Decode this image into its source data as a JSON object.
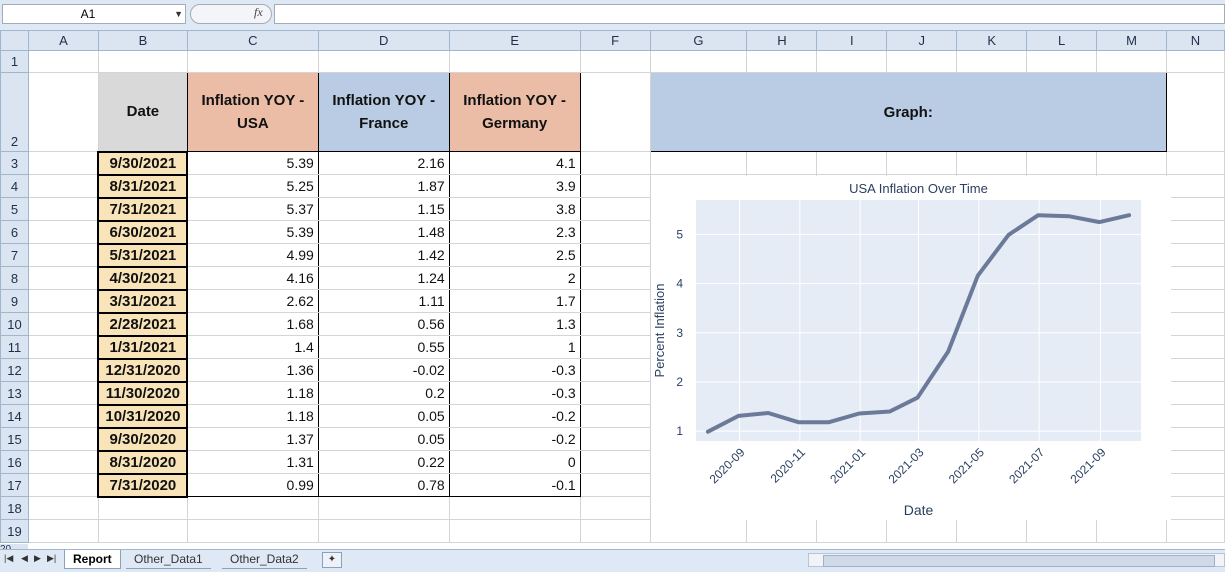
{
  "formula_bar": {
    "name_box": "A1",
    "fx": "fx",
    "formula": ""
  },
  "columns": [
    "A",
    "B",
    "C",
    "D",
    "E",
    "F",
    "G",
    "H",
    "I",
    "J",
    "K",
    "L",
    "M",
    "N"
  ],
  "rows": [
    "1",
    "2",
    "3",
    "4",
    "5",
    "6",
    "7",
    "8",
    "9",
    "10",
    "11",
    "12",
    "13",
    "14",
    "15",
    "16",
    "17",
    "18",
    "19"
  ],
  "table": {
    "headers": {
      "date": "Date",
      "usa": "Inflation YOY - USA",
      "france": "Inflation YOY - France",
      "germany": "Inflation YOY - Germany"
    },
    "data": [
      {
        "date": "9/30/2021",
        "usa": "5.39",
        "france": "2.16",
        "germany": "4.1"
      },
      {
        "date": "8/31/2021",
        "usa": "5.25",
        "france": "1.87",
        "germany": "3.9"
      },
      {
        "date": "7/31/2021",
        "usa": "5.37",
        "france": "1.15",
        "germany": "3.8"
      },
      {
        "date": "6/30/2021",
        "usa": "5.39",
        "france": "1.48",
        "germany": "2.3"
      },
      {
        "date": "5/31/2021",
        "usa": "4.99",
        "france": "1.42",
        "germany": "2.5"
      },
      {
        "date": "4/30/2021",
        "usa": "4.16",
        "france": "1.24",
        "germany": "2"
      },
      {
        "date": "3/31/2021",
        "usa": "2.62",
        "france": "1.11",
        "germany": "1.7"
      },
      {
        "date": "2/28/2021",
        "usa": "1.68",
        "france": "0.56",
        "germany": "1.3"
      },
      {
        "date": "1/31/2021",
        "usa": "1.4",
        "france": "0.55",
        "germany": "1"
      },
      {
        "date": "12/31/2020",
        "usa": "1.36",
        "france": "-0.02",
        "germany": "-0.3"
      },
      {
        "date": "11/30/2020",
        "usa": "1.18",
        "france": "0.2",
        "germany": "-0.3"
      },
      {
        "date": "10/31/2020",
        "usa": "1.18",
        "france": "0.05",
        "germany": "-0.2"
      },
      {
        "date": "9/30/2020",
        "usa": "1.37",
        "france": "0.05",
        "germany": "-0.2"
      },
      {
        "date": "8/31/2020",
        "usa": "1.31",
        "france": "0.22",
        "germany": "0"
      },
      {
        "date": "7/31/2020",
        "usa": "0.99",
        "france": "0.78",
        "germany": "-0.1"
      }
    ]
  },
  "graph_header": "Graph:",
  "chart_data": {
    "type": "line",
    "title": "USA Inflation Over Time",
    "xlabel": "Date",
    "ylabel": "Percent Inflation",
    "x": [
      "2020-07-31",
      "2020-08-31",
      "2020-09-30",
      "2020-10-31",
      "2020-11-30",
      "2020-12-31",
      "2021-01-31",
      "2021-02-28",
      "2021-03-31",
      "2021-04-30",
      "2021-05-31",
      "2021-06-30",
      "2021-07-31",
      "2021-08-31",
      "2021-09-30"
    ],
    "y": [
      0.99,
      1.31,
      1.37,
      1.18,
      1.18,
      1.36,
      1.4,
      1.68,
      2.62,
      4.16,
      4.99,
      5.39,
      5.37,
      5.25,
      5.39
    ],
    "x_ticks": [
      "2020-09",
      "2020-11",
      "2021-01",
      "2021-03",
      "2021-05",
      "2021-07",
      "2021-09"
    ],
    "y_ticks": [
      "1",
      "2",
      "3",
      "4",
      "5"
    ],
    "ylim": [
      0.8,
      5.7
    ],
    "line_color": "#6b7a99",
    "plot_background": "#e5ecf6",
    "grid": true
  },
  "sheet_tabs": [
    "Report",
    "Other_Data1",
    "Other_Data2"
  ],
  "nav_icons": [
    "first-sheet-icon",
    "prev-sheet-icon",
    "next-sheet-icon",
    "last-sheet-icon"
  ]
}
